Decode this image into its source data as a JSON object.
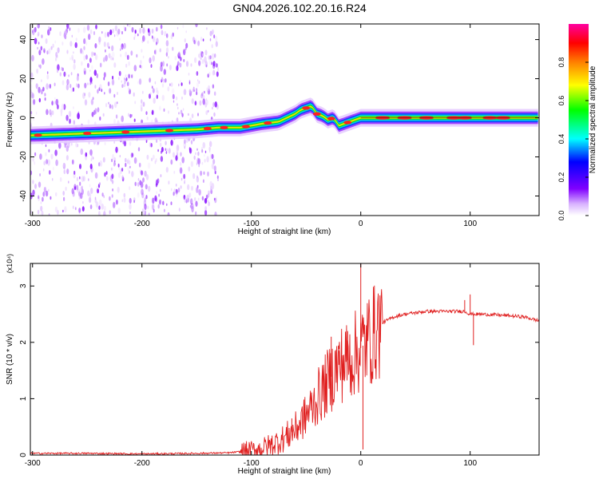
{
  "title": "GN04.2026.102.20.16.R24",
  "chart_data": [
    {
      "type": "heatmap",
      "xlabel": "Height of straight line (km)",
      "ylabel": "Frequency (Hz)",
      "xlim": [
        -302,
        163
      ],
      "ylim": [
        -50,
        48
      ],
      "xticks": [
        -300,
        -200,
        -100,
        0,
        100
      ],
      "yticks": [
        -40,
        -20,
        0,
        20,
        40
      ],
      "colorbar": {
        "label": "Normalized spectral amplitude",
        "range": [
          0,
          1
        ],
        "ticks": [
          "0.0",
          "0.2",
          "0.4",
          "0.6",
          "0.8"
        ],
        "colors": [
          "#ffffff",
          "#8000ff",
          "#0000ff",
          "#00ffff",
          "#00ff00",
          "#ffff00",
          "#ff8000",
          "#ff0000",
          "#ff00a0"
        ]
      },
      "ridge": {
        "x": [
          -302,
          -250,
          -200,
          -150,
          -130,
          -110,
          -90,
          -75,
          -60,
          -55,
          -50,
          -45,
          -40,
          -35,
          -30,
          -25,
          -20,
          -15,
          -10,
          -5,
          0,
          20,
          60,
          100,
          130,
          163
        ],
        "y": [
          -9,
          -8,
          -7,
          -6,
          -5,
          -5,
          -3,
          -2,
          2,
          4,
          5,
          6,
          2,
          1,
          -1,
          0,
          -4,
          -3,
          -2,
          -1,
          0,
          0,
          0,
          0,
          0,
          0
        ]
      },
      "noise_region_x": [
        -302,
        -130
      ]
    },
    {
      "type": "line",
      "xlabel": "Height of straight line (km)",
      "ylabel": "SNR (10 * v/v)",
      "scale_label": "(x10⁴)",
      "xlim": [
        -302,
        163
      ],
      "ylim": [
        0,
        3.4
      ],
      "xticks": [
        -300,
        -200,
        -100,
        0,
        100
      ],
      "yticks": [
        0,
        1,
        2,
        3
      ],
      "color": "#e02020",
      "envelope": {
        "x": [
          -302,
          -250,
          -200,
          -150,
          -120,
          -100,
          -90,
          -80,
          -70,
          -60,
          -50,
          -40,
          -30,
          -20,
          -10,
          0,
          10,
          20,
          30,
          40,
          60,
          80,
          95,
          100,
          110,
          130,
          150,
          163
        ],
        "y": [
          0.03,
          0.03,
          0.02,
          0.03,
          0.04,
          0.08,
          0.12,
          0.2,
          0.3,
          0.45,
          0.7,
          1.0,
          1.3,
          1.6,
          1.7,
          1.9,
          2.1,
          2.35,
          2.45,
          2.5,
          2.55,
          2.55,
          2.55,
          2.5,
          2.5,
          2.48,
          2.45,
          2.38
        ]
      },
      "spikes": [
        {
          "x": -63,
          "y": 0.65
        },
        {
          "x": -27,
          "y": 2.1
        },
        {
          "x": -20,
          "y": 1.85
        },
        {
          "x": -12,
          "y": 2.2
        },
        {
          "x": 0,
          "y": 3.45
        },
        {
          "x": 2,
          "y": 0.1
        },
        {
          "x": 95,
          "y": 2.75
        },
        {
          "x": 100,
          "y": 2.85
        },
        {
          "x": 103,
          "y": 1.95
        }
      ]
    }
  ]
}
